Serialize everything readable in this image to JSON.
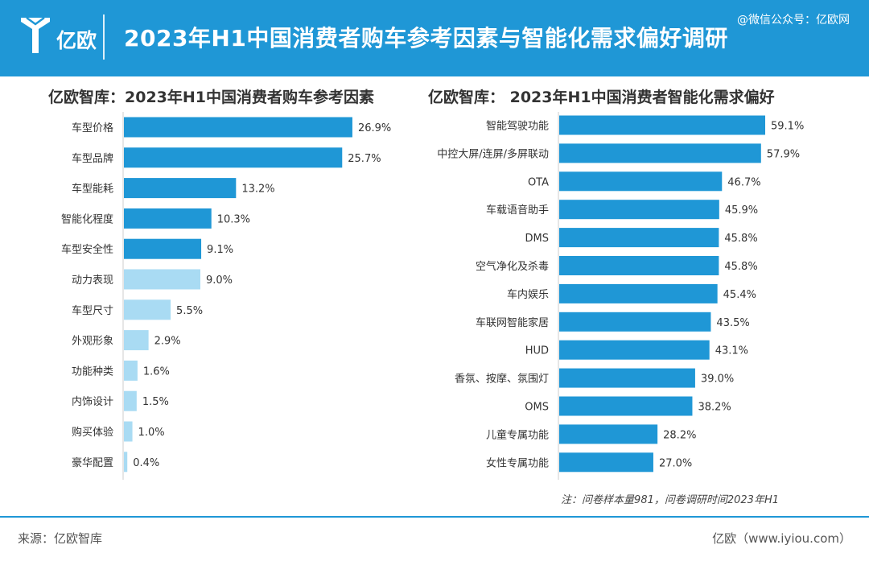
{
  "header": {
    "logo_text": "亿欧",
    "title": "2023年H1中国消费者购车参考因素与智能化需求偏好调研",
    "watermark": "@微信公众号：亿欧网"
  },
  "colors": {
    "header_bg": "#1f97d6",
    "bar_dark": "#1f97d6",
    "bar_light": "#a9dbf3"
  },
  "chart_data": [
    {
      "type": "bar",
      "orientation": "horizontal",
      "title": "亿欧智库：2023年H1中国消费者购车参考因素",
      "categories": [
        "车型价格",
        "车型品牌",
        "车型能耗",
        "智能化程度",
        "车型安全性",
        "动力表现",
        "车型尺寸",
        "外观形象",
        "功能种类",
        "内饰设计",
        "购买体验",
        "豪华配置"
      ],
      "values": [
        26.9,
        25.7,
        13.2,
        10.3,
        9.1,
        9.0,
        5.5,
        2.9,
        1.6,
        1.5,
        1.0,
        0.4
      ],
      "value_labels": [
        "26.9%",
        "25.7%",
        "13.2%",
        "10.3%",
        "9.1%",
        "9.0%",
        "5.5%",
        "2.9%",
        "1.6%",
        "1.5%",
        "1.0%",
        "0.4%"
      ],
      "highlight_count": 5,
      "xlim": [
        0,
        27
      ]
    },
    {
      "type": "bar",
      "orientation": "horizontal",
      "title": "亿欧智库：  2023年H1中国消费者智能化需求偏好",
      "categories": [
        "智能驾驶功能",
        "中控大屏/连屏/多屏联动",
        "OTA",
        "车载语音助手",
        "DMS",
        "空气净化及杀毒",
        "车内娱乐",
        "车联网智能家居",
        "HUD",
        "香氛、按摩、氛围灯",
        "OMS",
        "儿童专属功能",
        "女性专属功能"
      ],
      "values": [
        59.1,
        57.9,
        46.7,
        45.9,
        45.8,
        45.8,
        45.4,
        43.5,
        43.1,
        39.0,
        38.2,
        28.2,
        27.0
      ],
      "value_labels": [
        "59.1%",
        "57.9%",
        "46.7%",
        "45.9%",
        "45.8%",
        "45.8%",
        "45.4%",
        "43.5%",
        "43.1%",
        "39.0%",
        "38.2%",
        "28.2%",
        "27.0%"
      ],
      "xlim": [
        0,
        59.1
      ]
    }
  ],
  "note": "注：问卷样本量981，问卷调研时间2023年H1",
  "footer": {
    "source": "来源：亿欧智库",
    "site": "亿欧（www.iyiou.com）"
  }
}
